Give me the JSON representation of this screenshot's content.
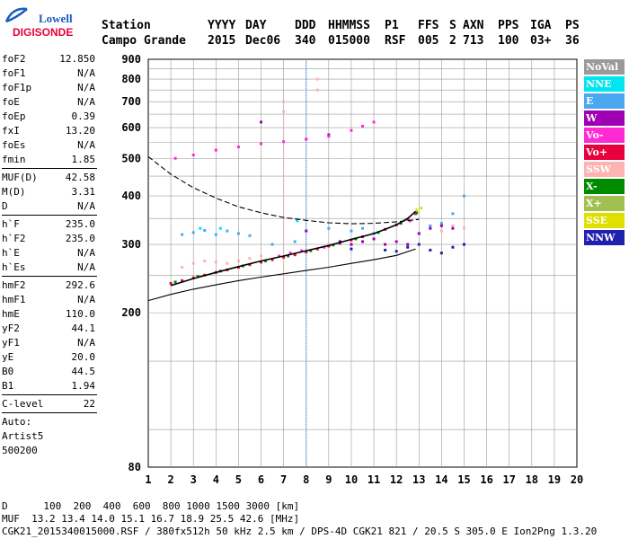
{
  "logo": {
    "top": "Lowell",
    "bottom": "DIGISONDE"
  },
  "header": {
    "labels": [
      "Station",
      "YYYY",
      "DAY",
      "DDD",
      "HHMMSS",
      "P1",
      "FFS",
      "S",
      "AXN",
      "PPS",
      "IGA",
      "PS"
    ],
    "values": [
      "Campo Grande",
      "2015",
      "Dec06",
      "340",
      "015000",
      "RSF",
      "005",
      "2",
      "713",
      "100",
      "03+",
      "36"
    ]
  },
  "params_groups": [
    [
      {
        "k": "foF2",
        "v": "12.850"
      },
      {
        "k": "foF1",
        "v": "N/A"
      },
      {
        "k": "foF1p",
        "v": "N/A"
      },
      {
        "k": "foE",
        "v": "N/A"
      },
      {
        "k": "foEp",
        "v": "0.39"
      },
      {
        "k": "fxI",
        "v": "13.20"
      },
      {
        "k": "foEs",
        "v": "N/A"
      },
      {
        "k": "fmin",
        "v": "1.85"
      }
    ],
    [
      {
        "k": "MUF(D)",
        "v": "42.58"
      },
      {
        "k": "M(D)",
        "v": "3.31"
      },
      {
        "k": "D",
        "v": "N/A"
      }
    ],
    [
      {
        "k": "h`F",
        "v": "235.0"
      },
      {
        "k": "h`F2",
        "v": "235.0"
      },
      {
        "k": "h`E",
        "v": "N/A"
      },
      {
        "k": "h`Es",
        "v": "N/A"
      }
    ],
    [
      {
        "k": "hmF2",
        "v": "292.6"
      },
      {
        "k": "hmF1",
        "v": "N/A"
      },
      {
        "k": "hmE",
        "v": "110.0"
      },
      {
        "k": "yF2",
        "v": "44.1"
      },
      {
        "k": "yF1",
        "v": "N/A"
      },
      {
        "k": "yE",
        "v": "20.0"
      },
      {
        "k": "B0",
        "v": "44.5"
      },
      {
        "k": "B1",
        "v": "1.94"
      }
    ],
    [
      {
        "k": "C-level",
        "v": "22"
      }
    ]
  ],
  "auto_text": [
    "Auto:",
    "Artist5",
    "500200"
  ],
  "legend": [
    {
      "label": "NoVal",
      "color": "#9a9a9a"
    },
    {
      "label": "NNE",
      "color": "#00e5ee"
    },
    {
      "label": "E",
      "color": "#4aa8f0"
    },
    {
      "label": "W",
      "color": "#a000b4"
    },
    {
      "label": "Vo-",
      "color": "#ff2ad4"
    },
    {
      "label": "Vo+",
      "color": "#e8003c"
    },
    {
      "label": "SSW",
      "color": "#ffb2b2"
    },
    {
      "label": "X-",
      "color": "#008a00"
    },
    {
      "label": "X+",
      "color": "#a0c050"
    },
    {
      "label": "SSE",
      "color": "#e0e000"
    },
    {
      "label": "NNW",
      "color": "#2020b0"
    }
  ],
  "footer": {
    "line1": "D      100  200  400  600  800 1000 1500 3000 [km]",
    "line2": "MUF  13.2 13.4 14.0 15.1 16.7 18.9 25.5 42.6 [MHz]",
    "line3": "CGK21_2015340015000.RSF / 380fx512h 50 kHz 2.5 km / DPS-4D CGK21 821 / 20.5 S 305.0 E Ion2Png 1.3.20"
  },
  "chart_data": {
    "type": "scatter",
    "title": "",
    "xlabel": "",
    "ylabel": "",
    "xlim": [
      1,
      20
    ],
    "ylim": [
      80,
      900
    ],
    "x_ticks": [
      1,
      2,
      3,
      4,
      5,
      6,
      7,
      8,
      9,
      10,
      11,
      12,
      13,
      14,
      15,
      16,
      17,
      18,
      19,
      20
    ],
    "y_ticks": [
      80,
      200,
      300,
      400,
      500,
      600,
      700,
      800,
      900
    ],
    "y_scale": "log",
    "grid": true,
    "series": [
      {
        "name": "Vo+",
        "color": "#e8003c",
        "points": [
          [
            2.0,
            238
          ],
          [
            2.5,
            242
          ],
          [
            3.0,
            246
          ],
          [
            3.5,
            250
          ],
          [
            4.0,
            254
          ],
          [
            4.5,
            258
          ],
          [
            5.0,
            262
          ],
          [
            5.5,
            266
          ],
          [
            6.0,
            270
          ],
          [
            6.5,
            274
          ],
          [
            7.0,
            278
          ],
          [
            7.5,
            282
          ],
          [
            8.0,
            287
          ],
          [
            8.5,
            292
          ],
          [
            9.0,
            297
          ],
          [
            9.5,
            302
          ],
          [
            10.0,
            308
          ],
          [
            10.5,
            314
          ],
          [
            11.0,
            320
          ],
          [
            11.5,
            328
          ],
          [
            12.0,
            337
          ],
          [
            12.5,
            348
          ],
          [
            12.85,
            360
          ]
        ]
      },
      {
        "name": "X-",
        "color": "#008a00",
        "points": [
          [
            2.2,
            240
          ],
          [
            3.2,
            248
          ],
          [
            4.2,
            256
          ],
          [
            5.2,
            264
          ],
          [
            6.2,
            272
          ],
          [
            7.2,
            280
          ],
          [
            8.2,
            289
          ],
          [
            9.2,
            299
          ],
          [
            10.2,
            310
          ],
          [
            11.2,
            322
          ],
          [
            12.2,
            340
          ],
          [
            12.9,
            362
          ]
        ]
      },
      {
        "name": "SSW",
        "color": "#ffb2b2",
        "points": [
          [
            2.5,
            262
          ],
          [
            3.0,
            268
          ],
          [
            3.5,
            272
          ],
          [
            4.0,
            270
          ],
          [
            4.5,
            268
          ],
          [
            5.0,
            272
          ],
          [
            5.5,
            276
          ],
          [
            6.0,
            280
          ],
          [
            9.0,
            300
          ],
          [
            13.5,
            330
          ],
          [
            14.0,
            325
          ],
          [
            14.5,
            335
          ],
          [
            15.0,
            330
          ],
          [
            7.0,
            660
          ],
          [
            7.0,
            700
          ],
          [
            8.5,
            750
          ],
          [
            8.5,
            800
          ]
        ]
      },
      {
        "name": "E",
        "color": "#4aa8f0",
        "points": [
          [
            2.5,
            318
          ],
          [
            3.0,
            322
          ],
          [
            3.5,
            326
          ],
          [
            4.0,
            318
          ],
          [
            4.5,
            325
          ],
          [
            5.0,
            320
          ],
          [
            5.5,
            316
          ],
          [
            6.5,
            300
          ],
          [
            7.5,
            305
          ],
          [
            9.0,
            330
          ],
          [
            10.0,
            325
          ],
          [
            10.5,
            330
          ],
          [
            11.0,
            320
          ],
          [
            13.0,
            320
          ],
          [
            13.5,
            335
          ],
          [
            14.0,
            340
          ],
          [
            14.5,
            360
          ],
          [
            15.0,
            400
          ]
        ]
      },
      {
        "name": "W",
        "color": "#a000b4",
        "points": [
          [
            10.0,
            300
          ],
          [
            10.5,
            305
          ],
          [
            11.0,
            310
          ],
          [
            11.5,
            300
          ],
          [
            12.0,
            305
          ],
          [
            12.5,
            300
          ],
          [
            13.0,
            320
          ],
          [
            13.5,
            330
          ],
          [
            14.0,
            335
          ],
          [
            14.5,
            330
          ],
          [
            8.0,
            325
          ],
          [
            6.0,
            620
          ],
          [
            8.0,
            560
          ],
          [
            9.0,
            575
          ]
        ]
      },
      {
        "name": "NNW",
        "color": "#2020b0",
        "points": [
          [
            11.5,
            290
          ],
          [
            12.0,
            288
          ],
          [
            12.5,
            295
          ],
          [
            13.0,
            300
          ],
          [
            13.5,
            290
          ],
          [
            14.0,
            285
          ],
          [
            14.5,
            295
          ],
          [
            15.0,
            300
          ],
          [
            9.5,
            305
          ],
          [
            10.0,
            292
          ]
        ]
      },
      {
        "name": "Vo-",
        "color": "#ff2ad4",
        "points": [
          [
            6.8,
            280
          ],
          [
            7.3,
            285
          ],
          [
            7.8,
            289
          ],
          [
            8.8,
            295
          ],
          [
            12.6,
            345
          ],
          [
            2.2,
            500
          ],
          [
            3.0,
            510
          ],
          [
            4.0,
            525
          ],
          [
            5.0,
            535
          ],
          [
            6.0,
            545
          ],
          [
            7.0,
            552
          ],
          [
            8.0,
            560
          ],
          [
            9.0,
            570
          ],
          [
            10.0,
            590
          ],
          [
            10.5,
            605
          ],
          [
            11.0,
            620
          ]
        ]
      },
      {
        "name": "NNE",
        "color": "#00e5ee",
        "points": [
          [
            3.3,
            330
          ],
          [
            4.2,
            330
          ],
          [
            7.6,
            345
          ]
        ]
      },
      {
        "name": "SSE",
        "color": "#e0e000",
        "points": [
          [
            12.9,
            368
          ],
          [
            13.1,
            372
          ]
        ]
      }
    ],
    "traces": [
      {
        "kind": "virtual_height_trace",
        "color": "#000000",
        "style": "solid",
        "points": [
          [
            2.0,
            235
          ],
          [
            3.0,
            245
          ],
          [
            4.0,
            254
          ],
          [
            5.0,
            263
          ],
          [
            6.0,
            272
          ],
          [
            7.0,
            280
          ],
          [
            8.0,
            289
          ],
          [
            9.0,
            298
          ],
          [
            10.0,
            309
          ],
          [
            11.0,
            320
          ],
          [
            11.5,
            328
          ],
          [
            12.0,
            337
          ],
          [
            12.5,
            350
          ],
          [
            12.85,
            365
          ]
        ]
      },
      {
        "kind": "true_height_profile",
        "color": "#000000",
        "style": "solid",
        "points": [
          [
            1.0,
            215
          ],
          [
            2.0,
            223
          ],
          [
            3.0,
            230
          ],
          [
            4.0,
            236
          ],
          [
            5.0,
            242
          ],
          [
            6.0,
            247
          ],
          [
            7.0,
            252
          ],
          [
            8.0,
            257
          ],
          [
            9.0,
            262
          ],
          [
            10.0,
            268
          ],
          [
            11.0,
            274
          ],
          [
            12.0,
            281
          ],
          [
            12.85,
            292
          ]
        ]
      },
      {
        "kind": "muf_curve",
        "color": "#000000",
        "style": "dashed",
        "points": [
          [
            1.0,
            505
          ],
          [
            2.0,
            455
          ],
          [
            3.0,
            420
          ],
          [
            4.0,
            395
          ],
          [
            5.0,
            375
          ],
          [
            6.0,
            362
          ],
          [
            7.0,
            352
          ],
          [
            8.0,
            346
          ],
          [
            9.0,
            341
          ],
          [
            10.0,
            339
          ],
          [
            11.0,
            340
          ],
          [
            12.0,
            343
          ],
          [
            13.0,
            348
          ]
        ]
      }
    ],
    "vertical_bands": [
      {
        "x": 7.0,
        "color": "#ffb2b2",
        "from": 200,
        "to": 660
      },
      {
        "x": 8.0,
        "color": "#4aa8f0",
        "from": 80,
        "to": 900
      }
    ]
  }
}
